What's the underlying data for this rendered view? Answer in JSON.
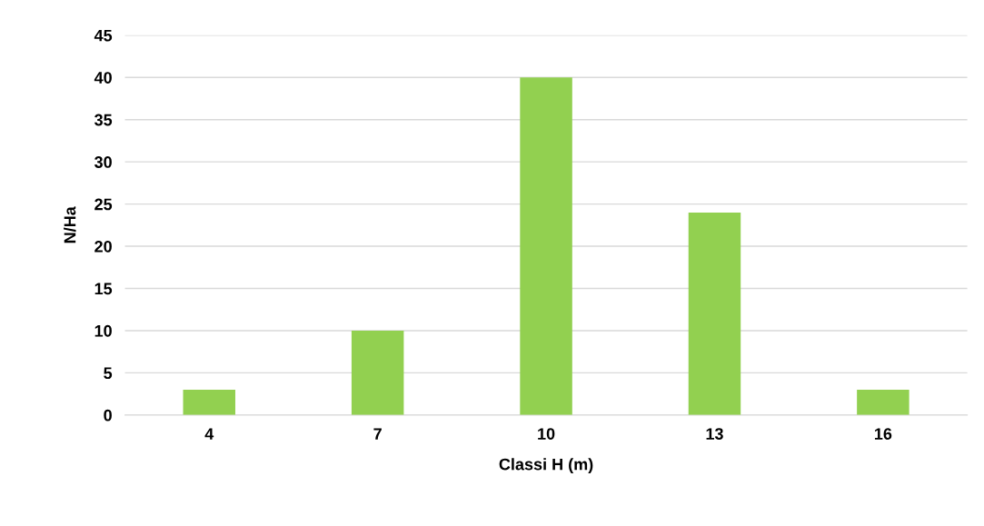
{
  "chart_data": {
    "type": "bar",
    "xlabel": "Classi H (m)",
    "ylabel": "N/Ha",
    "categories": [
      "4",
      "7",
      "10",
      "13",
      "16"
    ],
    "values": [
      3,
      10,
      40,
      24,
      3
    ],
    "color": "#92d050",
    "ylim": [
      0,
      45
    ],
    "yticks": [
      0,
      5,
      10,
      15,
      20,
      25,
      30,
      35,
      40,
      45
    ],
    "grid": "y",
    "legend": false
  }
}
